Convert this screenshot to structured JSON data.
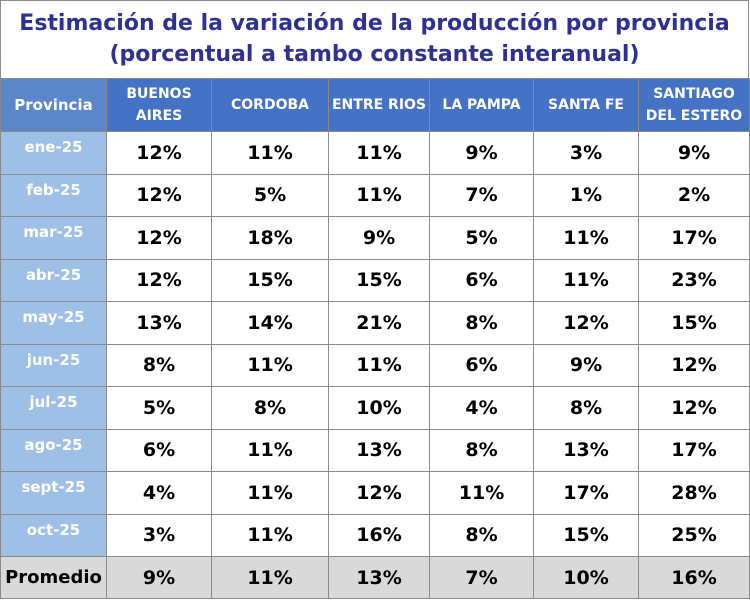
{
  "chart_data": {
    "type": "table",
    "title": "Estimación de la variación de la producción por provincia",
    "subtitle": "(porcentual a tambo constante interanual)",
    "row_header": "Provincia",
    "columns": [
      "BUENOS AIRES",
      "CORDOBA",
      "ENTRE RIOS",
      "LA PAMPA",
      "SANTA FE",
      "SANTIAGO DEL ESTERO"
    ],
    "rows": [
      {
        "label": "ene-25",
        "values": [
          "12%",
          "11%",
          "11%",
          "9%",
          "3%",
          "9%"
        ]
      },
      {
        "label": "feb-25",
        "values": [
          "12%",
          "5%",
          "11%",
          "7%",
          "1%",
          "2%"
        ]
      },
      {
        "label": "mar-25",
        "values": [
          "12%",
          "18%",
          "9%",
          "5%",
          "11%",
          "17%"
        ]
      },
      {
        "label": "abr-25",
        "values": [
          "12%",
          "15%",
          "15%",
          "6%",
          "11%",
          "23%"
        ]
      },
      {
        "label": "may-25",
        "values": [
          "13%",
          "14%",
          "21%",
          "8%",
          "12%",
          "15%"
        ]
      },
      {
        "label": "jun-25",
        "values": [
          "8%",
          "11%",
          "11%",
          "6%",
          "9%",
          "12%"
        ]
      },
      {
        "label": "jul-25",
        "values": [
          "5%",
          "8%",
          "10%",
          "4%",
          "8%",
          "12%"
        ]
      },
      {
        "label": "ago-25",
        "values": [
          "6%",
          "11%",
          "13%",
          "8%",
          "13%",
          "17%"
        ]
      },
      {
        "label": "sept-25",
        "values": [
          "4%",
          "11%",
          "12%",
          "11%",
          "17%",
          "28%"
        ]
      },
      {
        "label": "oct-25",
        "values": [
          "3%",
          "11%",
          "16%",
          "8%",
          "15%",
          "25%"
        ]
      }
    ],
    "average": {
      "label": "Promedio",
      "values": [
        "9%",
        "11%",
        "13%",
        "7%",
        "10%",
        "16%"
      ]
    }
  }
}
